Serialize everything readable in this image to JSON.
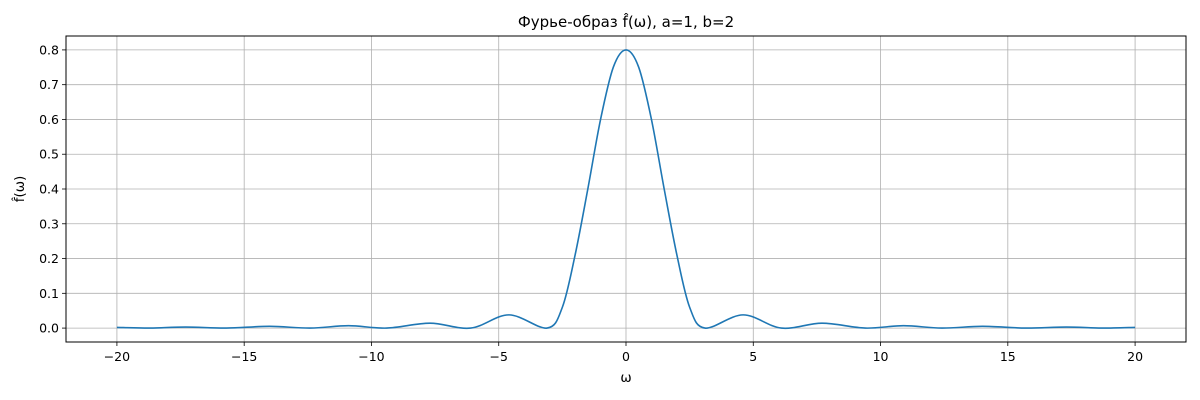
{
  "chart_data": {
    "type": "line",
    "title": "Фурье-образ f̂(ω), a=1, b=2",
    "xlabel": "ω",
    "ylabel": "f̂(ω)",
    "xlim": [
      -22,
      22
    ],
    "ylim": [
      -0.04,
      0.84
    ],
    "xticks": [
      -20,
      -15,
      -10,
      -5,
      0,
      5,
      10,
      15,
      20
    ],
    "xtick_labels": [
      "−20",
      "−15",
      "−10",
      "−5",
      "0",
      "5",
      "10",
      "15",
      "20"
    ],
    "yticks": [
      0.0,
      0.1,
      0.2,
      0.3,
      0.4,
      0.5,
      0.6,
      0.7,
      0.8
    ],
    "ytick_labels": [
      "0.0",
      "0.1",
      "0.2",
      "0.3",
      "0.4",
      "0.5",
      "0.6",
      "0.7",
      "0.8"
    ],
    "grid": true,
    "series": [
      {
        "color": "#1f77b4",
        "x": [
          -20,
          -18.7,
          -17.3,
          -15.7,
          -14.0,
          -12.4,
          -10.9,
          -9.4,
          -7.7,
          -6.1,
          -4.6,
          -3.1,
          -2.5,
          -2.0,
          -1.5,
          -1.0,
          -0.5,
          0,
          0.5,
          1.0,
          1.5,
          2.0,
          2.5,
          3.1,
          4.6,
          6.1,
          7.7,
          9.4,
          10.9,
          12.4,
          14.0,
          15.7,
          17.3,
          18.7,
          20
        ],
        "y": [
          0.002,
          0.0,
          0.003,
          0.0,
          0.005,
          0.0,
          0.007,
          0.0,
          0.014,
          0.0,
          0.038,
          0.0,
          0.06,
          0.21,
          0.4,
          0.6,
          0.75,
          0.8,
          0.75,
          0.6,
          0.4,
          0.21,
          0.06,
          0.0,
          0.038,
          0.0,
          0.014,
          0.0,
          0.007,
          0.0,
          0.005,
          0.0,
          0.003,
          0.0,
          0.002
        ]
      }
    ]
  }
}
